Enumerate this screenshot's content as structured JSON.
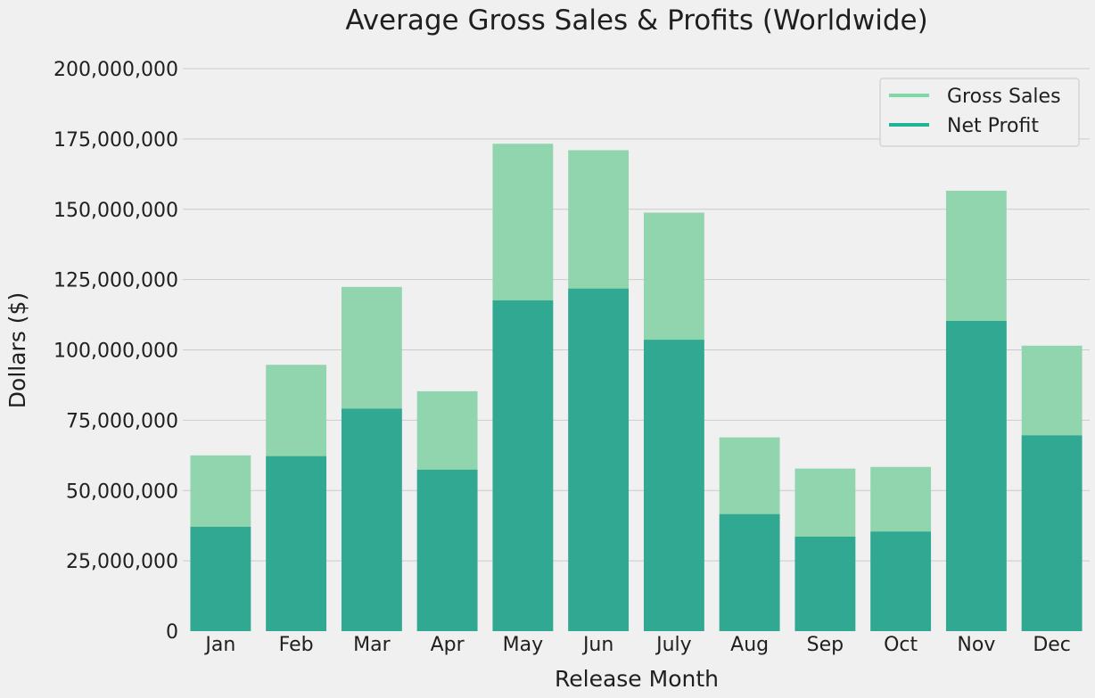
{
  "chart_data": {
    "type": "bar",
    "title": "Average Gross Sales & Profits (Worldwide)",
    "xlabel": "Release Month",
    "ylabel": "Dollars ($)",
    "categories": [
      "Jan",
      "Feb",
      "Mar",
      "Apr",
      "May",
      "Jun",
      "July",
      "Aug",
      "Sep",
      "Oct",
      "Nov",
      "Dec"
    ],
    "series": [
      {
        "name": "Gross Sales",
        "color": "#90d5ad",
        "values": [
          62500000,
          94700000,
          122400000,
          85300000,
          173300000,
          171000000,
          148800000,
          68900000,
          57800000,
          58400000,
          156600000,
          101500000
        ]
      },
      {
        "name": "Net Profit",
        "color": "#30a892",
        "values": [
          37100000,
          62200000,
          79100000,
          57400000,
          117600000,
          121800000,
          103600000,
          41600000,
          33600000,
          35400000,
          110300000,
          69600000
        ]
      }
    ],
    "ylim": [
      0,
      200000000
    ],
    "yticks": [
      0,
      25000000,
      50000000,
      75000000,
      100000000,
      125000000,
      150000000,
      175000000,
      200000000
    ],
    "ytick_labels": [
      "0",
      "25,000,000",
      "50,000,000",
      "75,000,000",
      "100,000,000",
      "125,000,000",
      "150,000,000",
      "175,000,000",
      "200,000,000"
    ],
    "grid": true,
    "legend_position": "top-right",
    "legend_swatch_colors": [
      "#7ed9a8",
      "#1fb398"
    ],
    "overlay": true
  }
}
